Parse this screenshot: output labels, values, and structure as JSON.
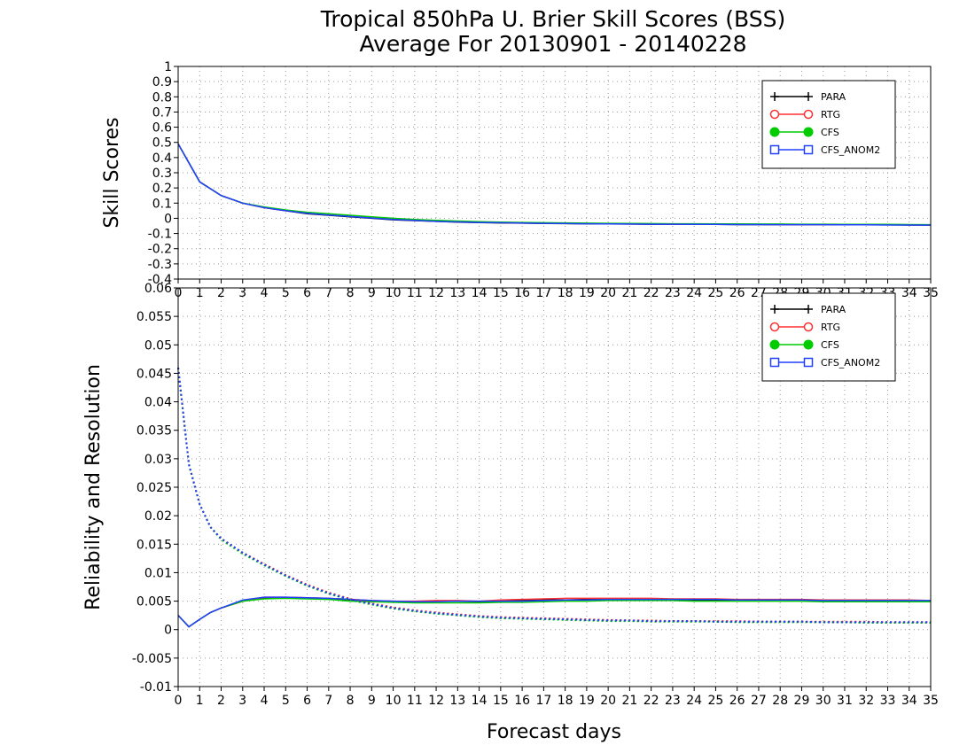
{
  "title_line1": "Tropical 850hPa U. Brier Skill Scores (BSS)",
  "title_line2": "Average For 20130901 - 20140228",
  "chart_data": [
    {
      "type": "line",
      "ylabel": "Skill Scores",
      "xlabel": "",
      "xlim": [
        0,
        35
      ],
      "ylim": [
        -0.4,
        1
      ],
      "yticks": [
        "-0.4",
        "-0.3",
        "-0.2",
        "-0.1",
        "0",
        "0.1",
        "0.2",
        "0.3",
        "0.4",
        "0.5",
        "0.6",
        "0.7",
        "0.8",
        "0.9",
        "1"
      ],
      "ytick_values": [
        -0.4,
        -0.3,
        -0.2,
        -0.1,
        0,
        0.1,
        0.2,
        0.3,
        0.4,
        0.5,
        0.6,
        0.7,
        0.8,
        0.9,
        1
      ],
      "xticks": [
        "0",
        "1",
        "2",
        "3",
        "4",
        "5",
        "6",
        "7",
        "8",
        "9",
        "10",
        "11",
        "12",
        "13",
        "14",
        "15",
        "16",
        "17",
        "18",
        "19",
        "20",
        "21",
        "22",
        "23",
        "24",
        "25",
        "26",
        "27",
        "28",
        "29",
        "30",
        "31",
        "32",
        "33",
        "34",
        "35"
      ],
      "grid": true,
      "legend_position": "top-right",
      "x": [
        0,
        1,
        2,
        3,
        4,
        5,
        6,
        7,
        8,
        9,
        10,
        11,
        12,
        13,
        14,
        15,
        16,
        17,
        18,
        19,
        20,
        21,
        22,
        23,
        24,
        25,
        26,
        27,
        28,
        29,
        30,
        31,
        32,
        33,
        34,
        35
      ],
      "series": [
        {
          "name": "PARA",
          "color": "#000000",
          "marker": "plus",
          "style": "solid",
          "values": [
            0.49,
            0.24,
            0.15,
            0.1,
            0.07,
            0.05,
            0.03,
            0.02,
            0.01,
            0.0,
            -0.01,
            -0.015,
            -0.02,
            -0.025,
            -0.028,
            -0.03,
            -0.032,
            -0.034,
            -0.035,
            -0.036,
            -0.037,
            -0.038,
            -0.039,
            -0.04,
            -0.04,
            -0.04,
            -0.041,
            -0.041,
            -0.042,
            -0.042,
            -0.042,
            -0.043,
            -0.043,
            -0.043,
            -0.044,
            -0.045
          ]
        },
        {
          "name": "RTG",
          "color": "#ff3030",
          "marker": "circle-open",
          "style": "solid",
          "values": [
            0.49,
            0.24,
            0.15,
            0.1,
            0.07,
            0.05,
            0.035,
            0.025,
            0.015,
            0.005,
            -0.005,
            -0.012,
            -0.018,
            -0.022,
            -0.025,
            -0.028,
            -0.03,
            -0.032,
            -0.033,
            -0.035,
            -0.036,
            -0.037,
            -0.038,
            -0.039,
            -0.039,
            -0.04,
            -0.04,
            -0.04,
            -0.041,
            -0.041,
            -0.042,
            -0.042,
            -0.042,
            -0.043,
            -0.043,
            -0.044
          ]
        },
        {
          "name": "CFS",
          "color": "#00cc00",
          "marker": "circle-filled",
          "style": "solid",
          "values": [
            0.49,
            0.24,
            0.15,
            0.1,
            0.075,
            0.055,
            0.04,
            0.03,
            0.02,
            0.01,
            0.0,
            -0.008,
            -0.014,
            -0.018,
            -0.022,
            -0.025,
            -0.027,
            -0.029,
            -0.03,
            -0.032,
            -0.033,
            -0.034,
            -0.035,
            -0.036,
            -0.036,
            -0.037,
            -0.037,
            -0.038,
            -0.038,
            -0.039,
            -0.039,
            -0.04,
            -0.04,
            -0.04,
            -0.041,
            -0.042
          ]
        },
        {
          "name": "CFS_ANOM2",
          "color": "#2040ff",
          "marker": "square-open",
          "style": "solid",
          "values": [
            0.49,
            0.24,
            0.15,
            0.1,
            0.07,
            0.05,
            0.033,
            0.022,
            0.012,
            0.002,
            -0.008,
            -0.014,
            -0.02,
            -0.024,
            -0.027,
            -0.029,
            -0.031,
            -0.033,
            -0.034,
            -0.036,
            -0.037,
            -0.038,
            -0.039,
            -0.039,
            -0.04,
            -0.04,
            -0.041,
            -0.041,
            -0.042,
            -0.042,
            -0.042,
            -0.043,
            -0.043,
            -0.044,
            -0.044,
            -0.045
          ]
        }
      ]
    },
    {
      "type": "line",
      "ylabel": "Reliability and Resolution",
      "xlabel": "Forecast days",
      "xlim": [
        0,
        35
      ],
      "ylim": [
        -0.01,
        0.06
      ],
      "yticks": [
        "-0.01",
        "-0.005",
        "0",
        "0.005",
        "0.01",
        "0.015",
        "0.02",
        "0.025",
        "0.03",
        "0.035",
        "0.04",
        "0.045",
        "0.05",
        "0.055",
        "0.06"
      ],
      "ytick_values": [
        -0.01,
        -0.005,
        0,
        0.005,
        0.01,
        0.015,
        0.02,
        0.025,
        0.03,
        0.035,
        0.04,
        0.045,
        0.05,
        0.055,
        0.06
      ],
      "xticks": [
        "0",
        "1",
        "2",
        "3",
        "4",
        "5",
        "6",
        "7",
        "8",
        "9",
        "10",
        "11",
        "12",
        "13",
        "14",
        "15",
        "16",
        "17",
        "18",
        "19",
        "20",
        "21",
        "22",
        "23",
        "24",
        "25",
        "26",
        "27",
        "28",
        "29",
        "30",
        "31",
        "32",
        "33",
        "34",
        "35"
      ],
      "grid": true,
      "legend_position": "top-right",
      "x": [
        0,
        0.5,
        1,
        1.5,
        2,
        3,
        4,
        5,
        6,
        7,
        8,
        9,
        10,
        11,
        12,
        13,
        14,
        15,
        16,
        17,
        18,
        19,
        20,
        21,
        22,
        23,
        24,
        25,
        26,
        27,
        28,
        29,
        30,
        31,
        32,
        33,
        34,
        35
      ],
      "resolution_series": [
        {
          "name": "PARA",
          "color": "#000000",
          "values": [
            0.0025,
            0.0005,
            0.0018,
            0.003,
            0.0038,
            0.005,
            0.0056,
            0.0056,
            0.0055,
            0.0054,
            0.0052,
            0.005,
            0.0049,
            0.0049,
            0.005,
            0.005,
            0.0049,
            0.005,
            0.0051,
            0.0052,
            0.0052,
            0.0053,
            0.0053,
            0.0053,
            0.0053,
            0.0053,
            0.0052,
            0.0052,
            0.0052,
            0.0052,
            0.0051,
            0.0051,
            0.0051,
            0.0051,
            0.0051,
            0.0051,
            0.005,
            0.005
          ]
        },
        {
          "name": "RTG",
          "color": "#ff3030",
          "values": [
            0.0025,
            0.0005,
            0.0018,
            0.003,
            0.0038,
            0.005,
            0.0057,
            0.0057,
            0.0056,
            0.0055,
            0.0053,
            0.0051,
            0.005,
            0.005,
            0.0051,
            0.0051,
            0.005,
            0.0052,
            0.0053,
            0.0054,
            0.0055,
            0.0055,
            0.0055,
            0.0055,
            0.0055,
            0.0054,
            0.0054,
            0.0054,
            0.0053,
            0.0053,
            0.0053,
            0.0053,
            0.0052,
            0.0052,
            0.0052,
            0.0052,
            0.0052,
            0.0051
          ]
        },
        {
          "name": "CFS",
          "color": "#00cc00",
          "values": [
            0.0025,
            0.0005,
            0.0018,
            0.003,
            0.0038,
            0.005,
            0.0054,
            0.0055,
            0.0054,
            0.0053,
            0.005,
            0.0049,
            0.0048,
            0.0047,
            0.0047,
            0.0047,
            0.0047,
            0.0048,
            0.0048,
            0.0049,
            0.005,
            0.005,
            0.0051,
            0.0051,
            0.0051,
            0.0051,
            0.005,
            0.005,
            0.005,
            0.005,
            0.005,
            0.005,
            0.0049,
            0.0049,
            0.0049,
            0.0049,
            0.0049,
            0.0049
          ]
        },
        {
          "name": "CFS_ANOM2",
          "color": "#2040ff",
          "values": [
            0.0025,
            0.0005,
            0.0018,
            0.003,
            0.0038,
            0.0052,
            0.0057,
            0.0057,
            0.0056,
            0.0055,
            0.0053,
            0.0051,
            0.005,
            0.0049,
            0.0049,
            0.005,
            0.005,
            0.005,
            0.005,
            0.0051,
            0.0052,
            0.0052,
            0.0053,
            0.0053,
            0.0053,
            0.0053,
            0.0053,
            0.0053,
            0.0052,
            0.0052,
            0.0052,
            0.0052,
            0.0051,
            0.0051,
            0.0051,
            0.0051,
            0.0051,
            0.0051
          ]
        }
      ],
      "reliability_series": [
        {
          "name": "PARA",
          "color": "#000000",
          "values": [
            0.046,
            0.029,
            0.022,
            0.018,
            0.016,
            0.0135,
            0.0115,
            0.0095,
            0.0078,
            0.0064,
            0.0053,
            0.0045,
            0.0038,
            0.0033,
            0.0029,
            0.0026,
            0.0023,
            0.0021,
            0.002,
            0.0019,
            0.0018,
            0.0017,
            0.0016,
            0.0016,
            0.0015,
            0.0015,
            0.0015,
            0.0014,
            0.0014,
            0.0014,
            0.0014,
            0.0014,
            0.0013,
            0.0013,
            0.0013,
            0.0013,
            0.0013,
            0.0013
          ]
        },
        {
          "name": "RTG",
          "color": "#ff3030",
          "values": [
            0.046,
            0.029,
            0.022,
            0.018,
            0.016,
            0.0135,
            0.0115,
            0.0096,
            0.0079,
            0.0065,
            0.0054,
            0.0046,
            0.0039,
            0.0034,
            0.003,
            0.0027,
            0.0024,
            0.0022,
            0.0021,
            0.002,
            0.0019,
            0.0018,
            0.0017,
            0.0016,
            0.0016,
            0.0015,
            0.0015,
            0.0015,
            0.0015,
            0.0014,
            0.0014,
            0.0014,
            0.0014,
            0.0014,
            0.0014,
            0.0013,
            0.0013,
            0.0013
          ]
        },
        {
          "name": "CFS",
          "color": "#00cc00",
          "values": [
            0.046,
            0.029,
            0.022,
            0.018,
            0.0158,
            0.0133,
            0.0113,
            0.0094,
            0.0077,
            0.0063,
            0.0052,
            0.0044,
            0.0037,
            0.0032,
            0.0028,
            0.0025,
            0.0022,
            0.002,
            0.0019,
            0.0018,
            0.0017,
            0.0016,
            0.0015,
            0.0015,
            0.0014,
            0.0014,
            0.0014,
            0.0014,
            0.0013,
            0.0013,
            0.0013,
            0.0013,
            0.0013,
            0.0013,
            0.0012,
            0.0012,
            0.0012,
            0.0012
          ]
        },
        {
          "name": "CFS_ANOM2",
          "color": "#2040ff",
          "values": [
            0.046,
            0.029,
            0.022,
            0.018,
            0.016,
            0.0135,
            0.0114,
            0.0095,
            0.0078,
            0.0064,
            0.0053,
            0.0045,
            0.0038,
            0.0033,
            0.0029,
            0.0026,
            0.0023,
            0.0021,
            0.002,
            0.0019,
            0.0018,
            0.0017,
            0.0016,
            0.0016,
            0.0015,
            0.0015,
            0.0015,
            0.0014,
            0.0014,
            0.0014,
            0.0014,
            0.0014,
            0.0013,
            0.0013,
            0.0013,
            0.0013,
            0.0013,
            0.0013
          ]
        }
      ]
    }
  ]
}
